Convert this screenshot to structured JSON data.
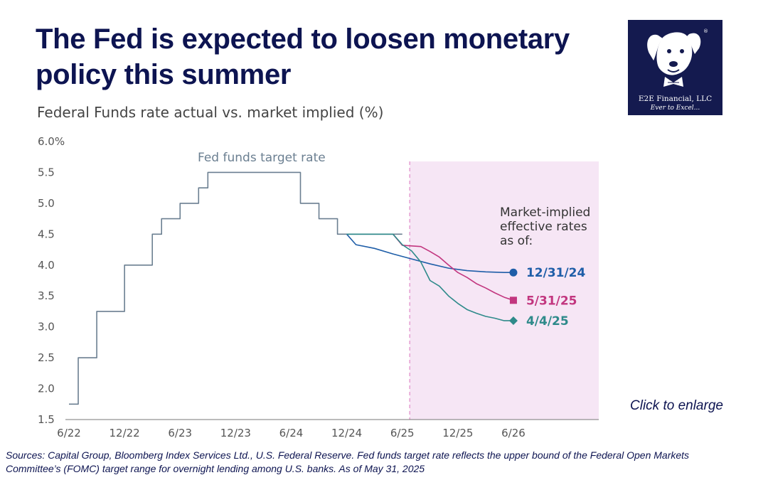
{
  "header": {
    "title": "The Fed is expected to loosen monetary policy this summer",
    "subtitle": "Federal Funds rate actual vs. market implied (%)"
  },
  "logo": {
    "name": "E2E Financial, LLC",
    "tagline": "Ever to Excel...",
    "icon": "dog-mascot-icon",
    "background": "#141a4f"
  },
  "chart_data": {
    "type": "line",
    "ylim": [
      1.5,
      6.0
    ],
    "y_ticks": [
      "6.0%",
      "5.5",
      "5.0",
      "4.5",
      "4.0",
      "3.5",
      "3.0",
      "2.5",
      "2.0",
      "1.5"
    ],
    "x_ticks": [
      "6/22",
      "12/22",
      "6/23",
      "12/23",
      "6/24",
      "12/24",
      "6/25",
      "12/25",
      "6/26"
    ],
    "xlim": [
      0,
      50
    ],
    "shaded_forecast_start": 36.8,
    "series": [
      {
        "name": "Fed funds target rate",
        "color": "#6b7f91",
        "step": true,
        "x": [
          0,
          1,
          3,
          6,
          9,
          10,
          12,
          14,
          15,
          17,
          19,
          25,
          27,
          29,
          30,
          31,
          36
        ],
        "y": [
          1.75,
          2.5,
          3.25,
          4.0,
          4.5,
          4.75,
          5.0,
          5.25,
          5.5,
          5.5,
          5.5,
          5.0,
          4.75,
          4.5,
          4.5,
          4.5,
          4.5
        ]
      },
      {
        "name": "12/31/24",
        "color": "#1f5ea8",
        "marker": "circle",
        "x": [
          30,
          31,
          33,
          35,
          37,
          39,
          41,
          43,
          45,
          47,
          48
        ],
        "y": [
          4.5,
          4.33,
          4.27,
          4.18,
          4.1,
          4.02,
          3.95,
          3.91,
          3.89,
          3.88,
          3.88
        ]
      },
      {
        "name": "5/31/25",
        "color": "#c2367f",
        "marker": "square",
        "x": [
          35,
          36,
          38,
          39,
          40,
          41,
          42,
          43,
          44,
          45,
          46,
          47,
          48
        ],
        "y": [
          4.5,
          4.32,
          4.3,
          4.22,
          4.13,
          4.0,
          3.88,
          3.8,
          3.7,
          3.63,
          3.55,
          3.48,
          3.43
        ]
      },
      {
        "name": "4/4/25",
        "color": "#2e8a8a",
        "marker": "diamond",
        "x": [
          30,
          35,
          36,
          37,
          38,
          39,
          40,
          41,
          42,
          43,
          44,
          45,
          46,
          47,
          48
        ],
        "y": [
          4.5,
          4.5,
          4.33,
          4.23,
          4.05,
          3.75,
          3.66,
          3.5,
          3.38,
          3.28,
          3.22,
          3.17,
          3.14,
          3.1,
          3.1
        ]
      }
    ],
    "annotations": {
      "line_label": "Fed funds target rate",
      "legend_title": [
        "Market-implied",
        "effective rates",
        "as of:"
      ]
    }
  },
  "footer": {
    "enlarge": "Click to enlarge",
    "source_line1": "Sources: Capital Group, Bloomberg Index Services Ltd., U.S. Federal Reserve. Fed funds target rate reflects the upper bound of the Federal Open Markets",
    "source_line2": "Committee’s (FOMC) target range for overnight lending among U.S. banks. As of May 31, 2025"
  }
}
